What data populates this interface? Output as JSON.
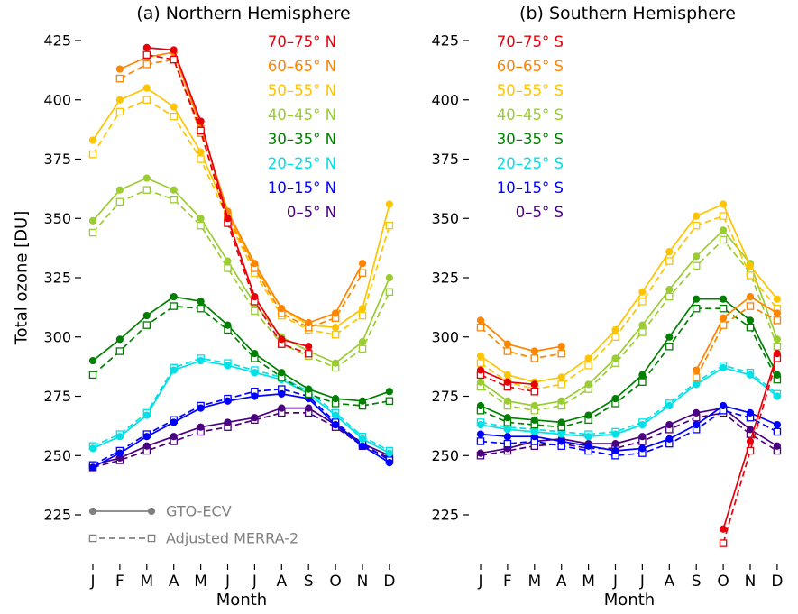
{
  "figure": {
    "background": "#ffffff",
    "text_color": "#000000"
  },
  "methods_legend": {
    "color": "#808080",
    "items": [
      {
        "label": "GTO-ECV",
        "style": "solid-circle"
      },
      {
        "label": "Adjusted MERRA-2",
        "style": "dashed-square"
      }
    ]
  },
  "chart_data": [
    {
      "type": "line",
      "title": "(a) Northern Hemisphere",
      "xlabel": "Month",
      "ylabel": "Total ozone [DU]",
      "x_ticklabels": [
        "J",
        "F",
        "M",
        "A",
        "M",
        "J",
        "J",
        "A",
        "S",
        "O",
        "N",
        "D"
      ],
      "y_ticks": [
        225,
        250,
        275,
        300,
        325,
        350,
        375,
        400,
        425
      ],
      "ylim": [
        205,
        432
      ],
      "legend_position": "top-right",
      "series": [
        {
          "name": "70–75° N",
          "color": "#e8000b",
          "gto_ecv": [
            null,
            null,
            422,
            421,
            391,
            350,
            317,
            299,
            296,
            null,
            null,
            null
          ],
          "merra2": [
            null,
            null,
            419,
            417,
            387,
            348,
            315,
            297,
            293,
            null,
            null,
            null
          ]
        },
        {
          "name": "60–65° N",
          "color": "#ff8400",
          "gto_ecv": [
            null,
            413,
            418,
            420,
            389,
            353,
            331,
            312,
            306,
            310,
            331,
            null
          ],
          "merra2": [
            null,
            409,
            415,
            417,
            386,
            351,
            329,
            310,
            304,
            308,
            327,
            null
          ]
        },
        {
          "name": "50–55° N",
          "color": "#ffc400",
          "gto_ecv": [
            383,
            400,
            405,
            397,
            378,
            352,
            330,
            312,
            305,
            304,
            312,
            356
          ],
          "merra2": [
            377,
            395,
            400,
            393,
            375,
            350,
            327,
            309,
            303,
            301,
            309,
            347
          ]
        },
        {
          "name": "40–45° N",
          "color": "#9acd32",
          "gto_ecv": [
            349,
            362,
            367,
            362,
            350,
            332,
            314,
            300,
            294,
            289,
            298,
            325
          ],
          "merra2": [
            344,
            357,
            362,
            358,
            347,
            329,
            311,
            297,
            292,
            287,
            295,
            319
          ]
        },
        {
          "name": "30–35° N",
          "color": "#008000",
          "gto_ecv": [
            290,
            299,
            309,
            317,
            315,
            305,
            293,
            285,
            278,
            274,
            273,
            277
          ],
          "merra2": [
            284,
            294,
            305,
            313,
            312,
            303,
            291,
            283,
            276,
            272,
            271,
            273
          ]
        },
        {
          "name": "20–25° N",
          "color": "#00e0e5",
          "gto_ecv": [
            253,
            258,
            267,
            286,
            290,
            288,
            285,
            282,
            276,
            267,
            257,
            251
          ],
          "merra2": [
            254,
            259,
            268,
            287,
            291,
            289,
            286,
            283,
            277,
            268,
            258,
            252
          ]
        },
        {
          "name": "10–15° N",
          "color": "#0000ff",
          "gto_ecv": [
            245,
            251,
            258,
            264,
            270,
            273,
            275,
            276,
            274,
            263,
            254,
            247
          ],
          "merra2": [
            246,
            252,
            259,
            265,
            271,
            274,
            277,
            278,
            275,
            264,
            255,
            248
          ]
        },
        {
          "name": "0–5° N",
          "color": "#4b0082",
          "gto_ecv": [
            246,
            249,
            254,
            258,
            262,
            264,
            266,
            270,
            270,
            263,
            255,
            250
          ],
          "merra2": [
            245,
            248,
            252,
            256,
            260,
            262,
            265,
            268,
            268,
            262,
            254,
            249
          ]
        }
      ]
    },
    {
      "type": "line",
      "title": "(b) Southern Hemisphere",
      "xlabel": "Month",
      "ylabel": "",
      "x_ticklabels": [
        "J",
        "F",
        "M",
        "A",
        "M",
        "J",
        "J",
        "A",
        "S",
        "O",
        "N",
        "D"
      ],
      "y_ticks": [
        225,
        250,
        275,
        300,
        325,
        350,
        375,
        400,
        425
      ],
      "ylim": [
        205,
        432
      ],
      "legend_position": "top-left",
      "series": [
        {
          "name": "70–75° S",
          "color": "#e8000b",
          "gto_ecv": [
            286,
            281,
            280,
            null,
            null,
            null,
            null,
            null,
            null,
            219,
            256,
            293
          ],
          "merra2": [
            284,
            279,
            277,
            null,
            null,
            null,
            null,
            null,
            null,
            213,
            252,
            291
          ]
        },
        {
          "name": "60–65° S",
          "color": "#ff8400",
          "gto_ecv": [
            307,
            297,
            294,
            296,
            null,
            null,
            null,
            null,
            286,
            308,
            317,
            310
          ],
          "merra2": [
            304,
            294,
            291,
            293,
            null,
            null,
            null,
            null,
            283,
            305,
            313,
            307
          ]
        },
        {
          "name": "50–55° S",
          "color": "#ffc400",
          "gto_ecv": [
            292,
            284,
            281,
            283,
            291,
            303,
            319,
            336,
            351,
            356,
            330,
            316
          ],
          "merra2": [
            289,
            281,
            278,
            280,
            288,
            300,
            315,
            332,
            347,
            351,
            326,
            312
          ]
        },
        {
          "name": "40–45° S",
          "color": "#9acd32",
          "gto_ecv": [
            281,
            273,
            271,
            273,
            280,
            291,
            305,
            320,
            334,
            345,
            331,
            299
          ],
          "merra2": [
            279,
            271,
            269,
            271,
            278,
            289,
            302,
            317,
            330,
            341,
            327,
            296
          ]
        },
        {
          "name": "30–35° S",
          "color": "#008000",
          "gto_ecv": [
            271,
            266,
            265,
            264,
            267,
            274,
            284,
            300,
            316,
            316,
            307,
            284
          ],
          "merra2": [
            269,
            264,
            263,
            262,
            265,
            272,
            281,
            296,
            312,
            312,
            304,
            282
          ]
        },
        {
          "name": "20–25° S",
          "color": "#00e0e5",
          "gto_ecv": [
            263,
            261,
            260,
            259,
            258,
            259,
            263,
            271,
            280,
            287,
            284,
            275
          ],
          "merra2": [
            264,
            262,
            261,
            260,
            259,
            260,
            264,
            272,
            281,
            288,
            285,
            276
          ]
        },
        {
          "name": "10–15° S",
          "color": "#0000ff",
          "gto_ecv": [
            259,
            258,
            258,
            256,
            254,
            252,
            253,
            257,
            263,
            271,
            268,
            263
          ],
          "merra2": [
            256,
            255,
            256,
            254,
            252,
            250,
            251,
            255,
            261,
            269,
            266,
            260
          ]
        },
        {
          "name": "0–5° S",
          "color": "#4b0082",
          "gto_ecv": [
            251,
            253,
            256,
            257,
            255,
            255,
            258,
            263,
            268,
            270,
            261,
            254
          ],
          "merra2": [
            250,
            252,
            254,
            255,
            253,
            253,
            256,
            261,
            266,
            268,
            259,
            252
          ]
        }
      ]
    }
  ]
}
